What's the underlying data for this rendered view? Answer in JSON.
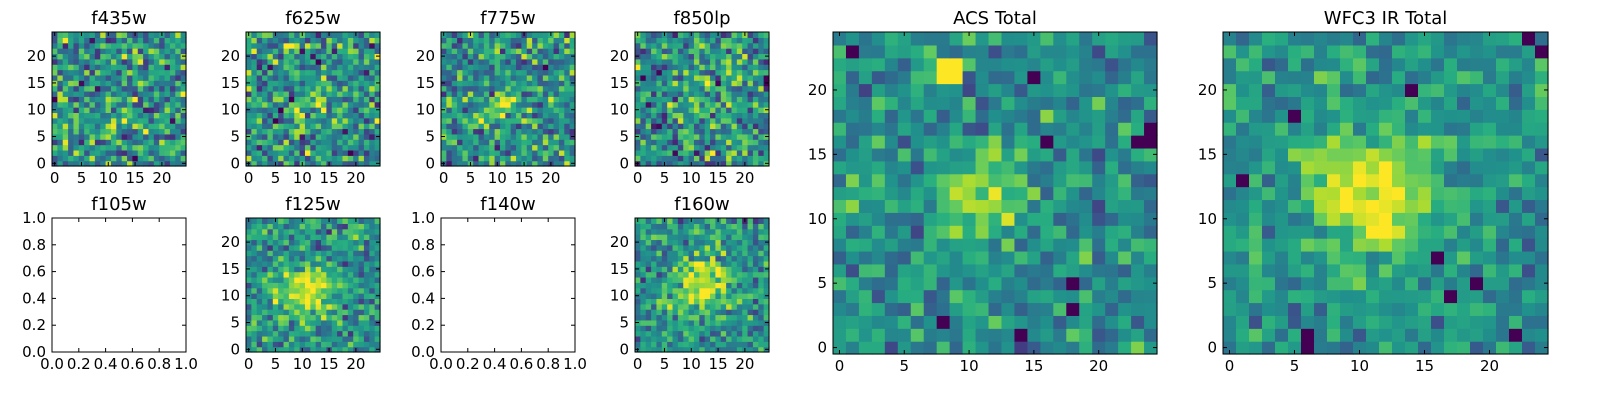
{
  "chart_data": [
    {
      "type": "heatmap",
      "title": "f435w",
      "xticks": [
        "0",
        "5",
        "10",
        "15",
        "20"
      ],
      "yticks": [
        "0",
        "5",
        "10",
        "15",
        "20"
      ],
      "xlim": [
        -0.5,
        24.5
      ],
      "ylim": [
        -0.5,
        24.5
      ],
      "blob": {
        "cx": 12,
        "cy": 10,
        "amp": 0.05,
        "sigma": 3
      },
      "noise": 0.42,
      "seed": 11,
      "bright": [],
      "dark": []
    },
    {
      "type": "heatmap",
      "title": "f625w",
      "xticks": [
        "0",
        "5",
        "10",
        "15",
        "20"
      ],
      "yticks": [
        "0",
        "5",
        "10",
        "15",
        "20"
      ],
      "xlim": [
        -0.5,
        24.5
      ],
      "ylim": [
        -0.5,
        24.5
      ],
      "blob": {
        "cx": 12,
        "cy": 11,
        "amp": 0.15,
        "sigma": 3
      },
      "noise": 0.4,
      "seed": 23,
      "bright": [
        [
          7,
          22
        ],
        [
          8,
          22
        ]
      ],
      "dark": [
        [
          5,
          8
        ],
        [
          8,
          12
        ],
        [
          6,
          10
        ]
      ]
    },
    {
      "type": "heatmap",
      "title": "f775w",
      "xticks": [
        "0",
        "5",
        "10",
        "15",
        "20"
      ],
      "yticks": [
        "0",
        "5",
        "10",
        "15",
        "20"
      ],
      "xlim": [
        -0.5,
        24.5
      ],
      "ylim": [
        -0.5,
        24.5
      ],
      "blob": {
        "cx": 11,
        "cy": 11,
        "amp": 0.3,
        "sigma": 2
      },
      "noise": 0.38,
      "seed": 37,
      "bright": [],
      "dark": []
    },
    {
      "type": "heatmap",
      "title": "f850lp",
      "xticks": [
        "0",
        "5",
        "10",
        "15",
        "20"
      ],
      "yticks": [
        "0",
        "5",
        "10",
        "15",
        "20"
      ],
      "xlim": [
        -0.5,
        24.5
      ],
      "ylim": [
        -0.5,
        24.5
      ],
      "blob": {
        "cx": 12,
        "cy": 12,
        "amp": 0.2,
        "sigma": 2.5
      },
      "noise": 0.4,
      "seed": 53,
      "bright": [],
      "dark": [
        [
          24,
          16
        ],
        [
          24,
          15
        ]
      ]
    },
    {
      "type": "empty",
      "title": "f105w",
      "xticks": [
        "0.0",
        "0.2",
        "0.4",
        "0.6",
        "0.8",
        "1.0"
      ],
      "yticks": [
        "0.0",
        "0.2",
        "0.4",
        "0.6",
        "0.8",
        "1.0"
      ],
      "xlim": [
        0,
        1
      ],
      "ylim": [
        0,
        1
      ]
    },
    {
      "type": "heatmap",
      "title": "f125w",
      "xticks": [
        "0",
        "5",
        "10",
        "15",
        "20"
      ],
      "yticks": [
        "0",
        "5",
        "10",
        "15",
        "20"
      ],
      "xlim": [
        -0.5,
        24.5
      ],
      "ylim": [
        -0.5,
        24.5
      ],
      "blob": {
        "cx": 11,
        "cy": 11,
        "amp": 0.45,
        "sigma": 3.5
      },
      "noise": 0.3,
      "seed": 71,
      "bright": [],
      "dark": []
    },
    {
      "type": "empty",
      "title": "f140w",
      "xticks": [
        "0.0",
        "0.2",
        "0.4",
        "0.6",
        "0.8",
        "1.0"
      ],
      "yticks": [
        "0.0",
        "0.2",
        "0.4",
        "0.6",
        "0.8",
        "1.0"
      ],
      "xlim": [
        0,
        1
      ],
      "ylim": [
        0,
        1
      ]
    },
    {
      "type": "heatmap",
      "title": "f160w",
      "xticks": [
        "0",
        "5",
        "10",
        "15",
        "20"
      ],
      "yticks": [
        "0",
        "5",
        "10",
        "15",
        "20"
      ],
      "xlim": [
        -0.5,
        24.5
      ],
      "ylim": [
        -0.5,
        24.5
      ],
      "blob": {
        "cx": 12,
        "cy": 12,
        "amp": 0.5,
        "sigma": 3.5
      },
      "noise": 0.3,
      "seed": 89,
      "bright": [],
      "dark": []
    },
    {
      "type": "heatmap",
      "title": "ACS Total",
      "xticks": [
        "0",
        "5",
        "10",
        "15",
        "20"
      ],
      "yticks": [
        "0",
        "5",
        "10",
        "15",
        "20"
      ],
      "xlim": [
        -0.5,
        24.5
      ],
      "ylim": [
        -0.5,
        24.5
      ],
      "blob": {
        "cx": 11,
        "cy": 12,
        "amp": 0.35,
        "sigma": 2.5
      },
      "noise": 0.25,
      "seed": 101,
      "bright": [
        [
          8,
          22
        ],
        [
          9,
          22
        ],
        [
          8,
          21
        ],
        [
          9,
          21
        ]
      ],
      "dark": [
        [
          24,
          16
        ],
        [
          23,
          16
        ],
        [
          24,
          17
        ],
        [
          18,
          5
        ],
        [
          18,
          3
        ],
        [
          8,
          2
        ],
        [
          14,
          1
        ],
        [
          1,
          23
        ],
        [
          16,
          16
        ],
        [
          15,
          21
        ]
      ]
    },
    {
      "type": "heatmap",
      "title": "WFC3 IR Total",
      "xticks": [
        "0",
        "5",
        "10",
        "15",
        "20"
      ],
      "yticks": [
        "0",
        "5",
        "10",
        "15",
        "20"
      ],
      "xlim": [
        -0.5,
        24.5
      ],
      "ylim": [
        -0.5,
        24.5
      ],
      "blob": {
        "cx": 11,
        "cy": 12,
        "amp": 0.5,
        "sigma": 3.5
      },
      "noise": 0.22,
      "seed": 131,
      "bright": [],
      "dark": [
        [
          23,
          24
        ],
        [
          24,
          23
        ],
        [
          6,
          1
        ],
        [
          6,
          0
        ],
        [
          5,
          18
        ],
        [
          14,
          20
        ],
        [
          1,
          13
        ],
        [
          22,
          1
        ],
        [
          19,
          5
        ],
        [
          16,
          7
        ],
        [
          17,
          4
        ]
      ]
    }
  ],
  "colors": {
    "colormap": [
      "#440154",
      "#472d7b",
      "#3b528b",
      "#2c728e",
      "#21918c",
      "#28ae80",
      "#5ec962",
      "#addc30",
      "#fde725"
    ]
  }
}
